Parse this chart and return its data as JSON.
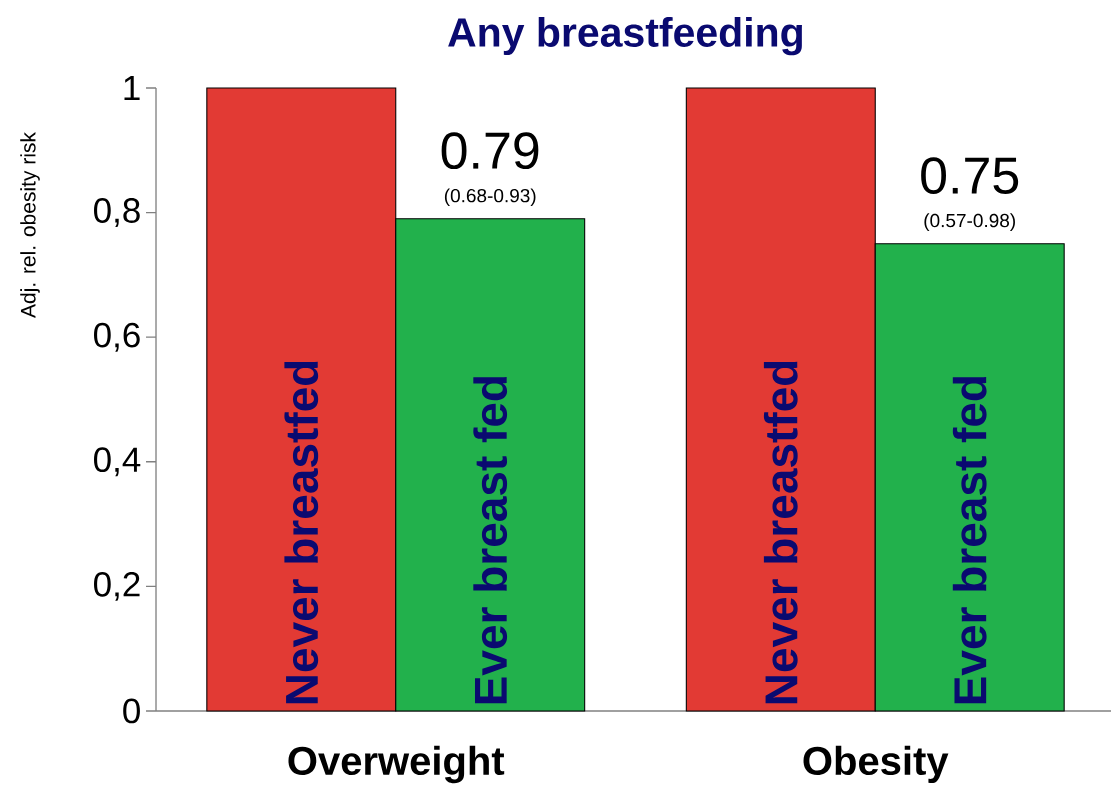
{
  "chart_data": {
    "type": "bar",
    "title": "Any breastfeeding",
    "ylabel": "Adj. rel. obesity risk",
    "categories": [
      "Overweight",
      "Obesity"
    ],
    "series": [
      {
        "name": "Never breastfed",
        "color": "#e23a34",
        "values": [
          1,
          1
        ]
      },
      {
        "name": "Ever breast fed",
        "color": "#22b14c",
        "values": [
          0.79,
          0.75
        ],
        "value_labels": [
          "0.79",
          "0.75"
        ]
      }
    ],
    "ylim": [
      0,
      1
    ],
    "yticks": [
      0,
      {
        "value": 0.2,
        "label": "0,2"
      },
      {
        "value": 0.4,
        "label": "0,4"
      },
      {
        "value": 0.6,
        "label": "0,6"
      },
      {
        "value": 0.8,
        "label": "0,8"
      },
      1
    ],
    "annotations": [
      {
        "text": "(0.68-0.93)",
        "x": "Overweight",
        "y": 0.79
      },
      {
        "text": "(0.57-0.98)",
        "x": "Obesity",
        "y": 0.75
      }
    ],
    "grid": false
  }
}
